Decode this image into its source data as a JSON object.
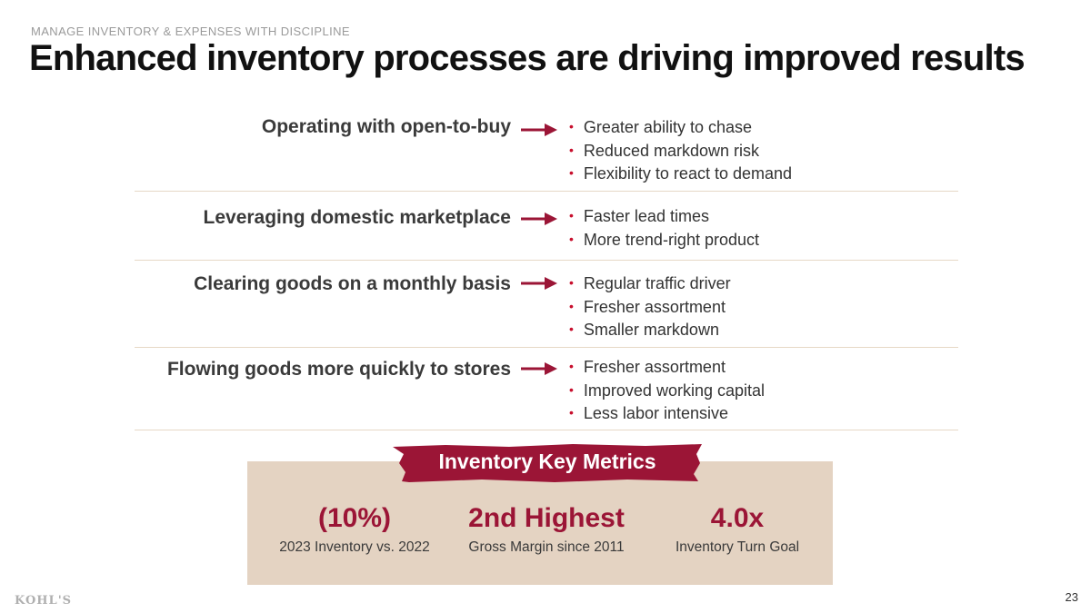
{
  "header": {
    "eyebrow": "MANAGE INVENTORY & EXPENSES WITH DISCIPLINE",
    "title": "Enhanced inventory processes are driving improved results"
  },
  "rows": [
    {
      "label": "Operating with open-to-buy",
      "bullets": [
        "Greater ability to chase",
        "Reduced markdown risk",
        "Flexibility to react to demand"
      ]
    },
    {
      "label": "Leveraging domestic marketplace",
      "bullets": [
        "Faster lead times",
        "More trend-right product"
      ]
    },
    {
      "label": "Clearing goods on a monthly basis",
      "bullets": [
        "Regular traffic driver",
        "Fresher assortment",
        "Smaller markdown"
      ]
    },
    {
      "label": "Flowing goods more quickly to stores",
      "bullets": [
        "Fresher assortment",
        "Improved working capital",
        "Less labor intensive"
      ]
    }
  ],
  "bullet_symbol": "•",
  "metrics": {
    "banner": "Inventory Key Metrics",
    "items": [
      {
        "value": "(10%)",
        "label": "2023 Inventory vs. 2022"
      },
      {
        "value": "2nd Highest",
        "label": "Gross Margin since 2011"
      },
      {
        "value": "4.0x",
        "label": "Inventory Turn Goal"
      }
    ]
  },
  "footer": {
    "logo": "KOHL'S",
    "page_number": "23"
  },
  "colors": {
    "accent": "#9b1536",
    "bullet": "#c8102e",
    "panel": "#e4d3c2",
    "divider": "#e6d8c6"
  }
}
